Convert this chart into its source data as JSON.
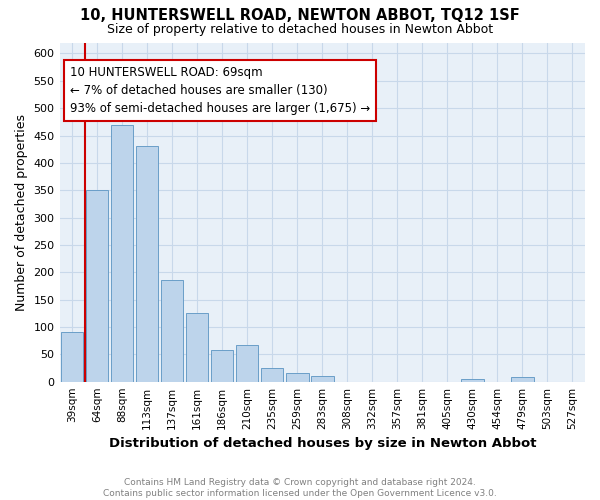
{
  "title": "10, HUNTERSWELL ROAD, NEWTON ABBOT, TQ12 1SF",
  "subtitle": "Size of property relative to detached houses in Newton Abbot",
  "xlabel": "Distribution of detached houses by size in Newton Abbot",
  "ylabel": "Number of detached properties",
  "footer_line1": "Contains HM Land Registry data © Crown copyright and database right 2024.",
  "footer_line2": "Contains public sector information licensed under the Open Government Licence v3.0.",
  "categories": [
    "39sqm",
    "64sqm",
    "88sqm",
    "113sqm",
    "137sqm",
    "161sqm",
    "186sqm",
    "210sqm",
    "235sqm",
    "259sqm",
    "283sqm",
    "308sqm",
    "332sqm",
    "357sqm",
    "381sqm",
    "405sqm",
    "430sqm",
    "454sqm",
    "479sqm",
    "503sqm",
    "527sqm"
  ],
  "values": [
    90,
    350,
    470,
    430,
    185,
    125,
    58,
    67,
    25,
    15,
    10,
    0,
    0,
    0,
    0,
    0,
    5,
    0,
    8,
    0,
    0
  ],
  "bar_color": "#bdd4eb",
  "bar_edge_color": "#6a9ec8",
  "grid_color": "#c8d8ea",
  "background_color": "#e8f0f8",
  "vline_x_bar_index": 1,
  "vline_color": "#cc0000",
  "annotation_text": "10 HUNTERSWELL ROAD: 69sqm\n← 7% of detached houses are smaller (130)\n93% of semi-detached houses are larger (1,675) →",
  "annotation_box_color": "#ffffff",
  "annotation_box_edge": "#cc0000",
  "ylim": [
    0,
    620
  ],
  "yticks": [
    0,
    50,
    100,
    150,
    200,
    250,
    300,
    350,
    400,
    450,
    500,
    550,
    600
  ]
}
